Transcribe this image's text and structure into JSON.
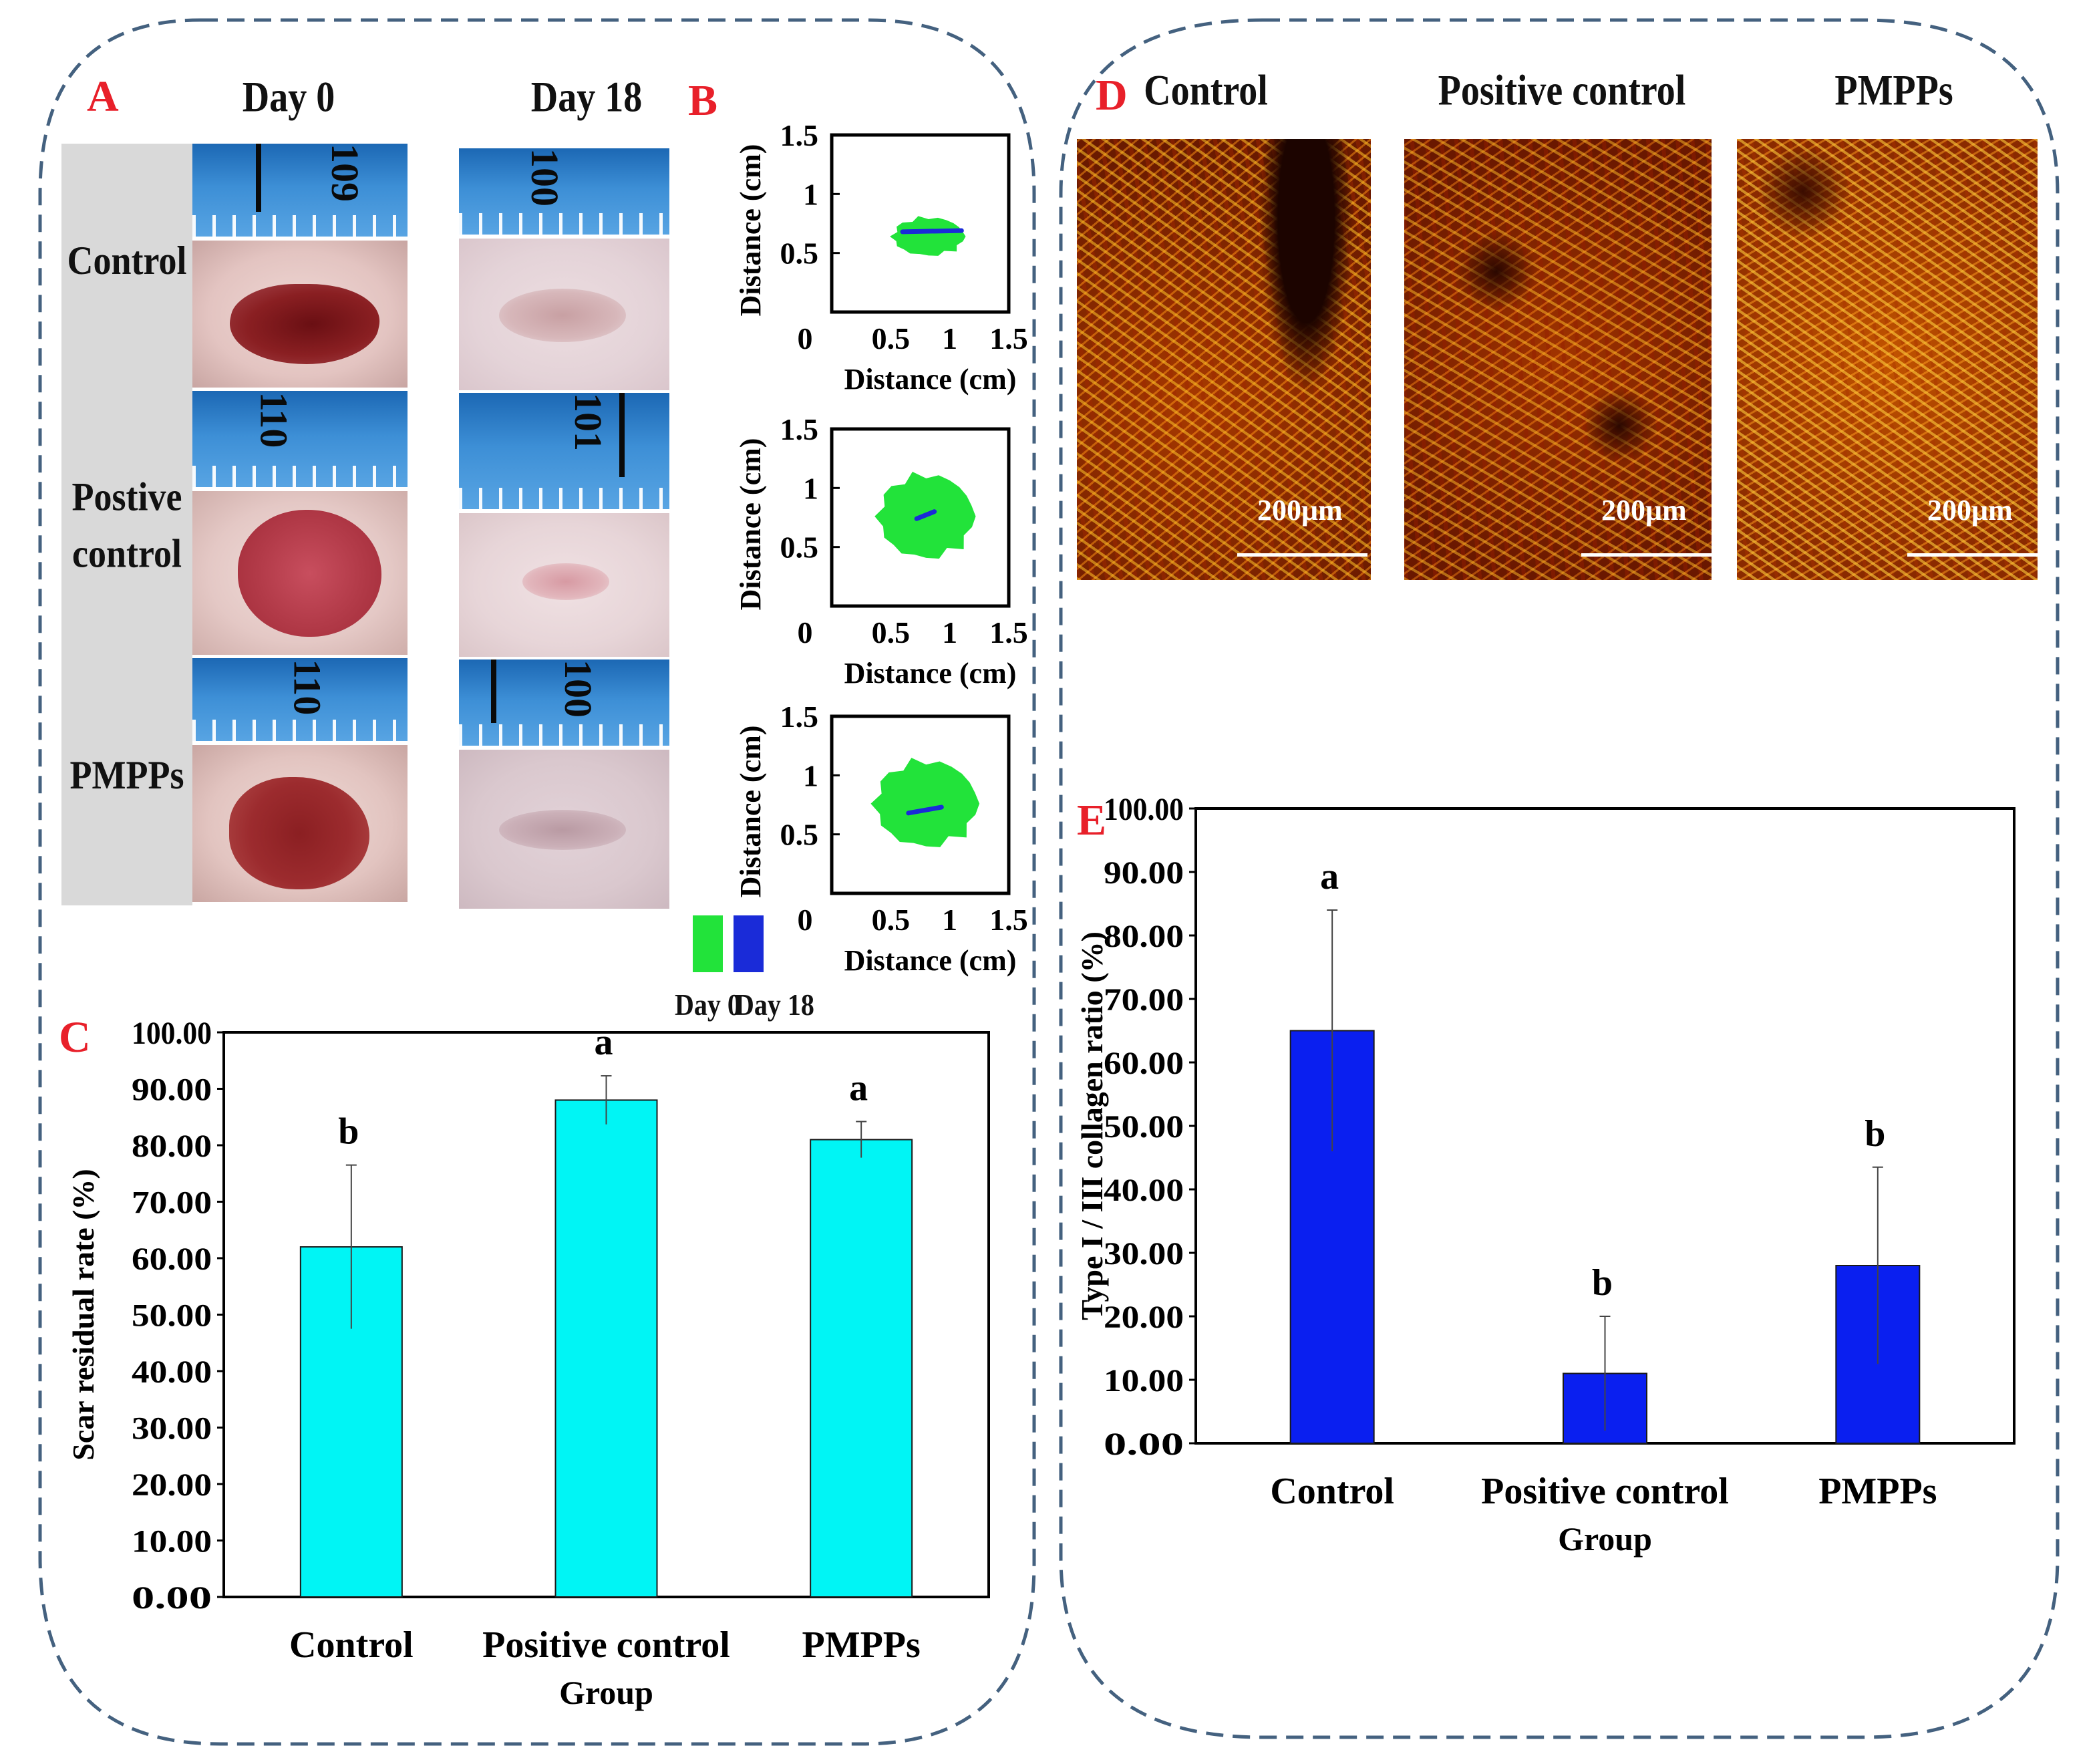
{
  "panels": {
    "a": {
      "letter": "A",
      "columns": [
        "Day 0",
        "Day 18"
      ],
      "rows": [
        "Control",
        "Postive control",
        "PMPPs"
      ],
      "ruler_numbers": {
        "day0": [
          "109",
          "110",
          "110"
        ],
        "day18": [
          "100",
          "101",
          "100"
        ]
      }
    },
    "b": {
      "letter": "B",
      "legend": [
        "Day 0",
        "Day 18"
      ],
      "legend_colors": [
        "#22e33a",
        "#1a2bd8"
      ]
    },
    "c": {
      "letter": "C"
    },
    "d": {
      "letter": "D",
      "columns": [
        "Control",
        "Positive control",
        "PMPPs"
      ],
      "scale_label": "200μm"
    },
    "e": {
      "letter": "E"
    }
  },
  "chart_data": [
    {
      "id": "B1",
      "type": "scatter",
      "title": "",
      "xlabel": "Distance (cm)",
      "ylabel": "Distance (cm)",
      "xlim": [
        0,
        1.5
      ],
      "ylim": [
        0,
        1.5
      ],
      "xticks": [
        "0",
        "0.5",
        "1",
        "1.5"
      ],
      "yticks": [
        "0.5",
        "1",
        "1.5"
      ],
      "series": [
        {
          "name": "Day 0",
          "color": "#22e33a",
          "shape": "wound area",
          "center": [
            0.82,
            0.64
          ],
          "extent": [
            0.6,
            0.32
          ]
        },
        {
          "name": "Day 18",
          "color": "#1a2bd8",
          "shape": "line",
          "points": [
            [
              0.6,
              0.68
            ],
            [
              1.1,
              0.69
            ]
          ]
        }
      ]
    },
    {
      "id": "B2",
      "type": "scatter",
      "title": "",
      "xlabel": "Distance (cm)",
      "ylabel": "Distance (cm)",
      "xlim": [
        0,
        1.5
      ],
      "ylim": [
        0,
        1.5
      ],
      "xticks": [
        "0",
        "0.5",
        "1",
        "1.5"
      ],
      "yticks": [
        "0.5",
        "1",
        "1.5"
      ],
      "series": [
        {
          "name": "Day 0",
          "color": "#22e33a",
          "shape": "wound area",
          "center": [
            0.8,
            0.76
          ],
          "extent": [
            0.8,
            0.7
          ]
        },
        {
          "name": "Day 18",
          "color": "#1a2bd8",
          "shape": "line",
          "points": [
            [
              0.72,
              0.74
            ],
            [
              0.87,
              0.8
            ]
          ]
        }
      ]
    },
    {
      "id": "B3",
      "type": "scatter",
      "title": "",
      "xlabel": "Distance (cm)",
      "ylabel": "Distance (cm)",
      "xlim": [
        0,
        1.5
      ],
      "ylim": [
        0,
        1.5
      ],
      "xticks": [
        "0",
        "0.5",
        "1",
        "1.5"
      ],
      "yticks": [
        "0.5",
        "1",
        "1.5"
      ],
      "series": [
        {
          "name": "Day 0",
          "color": "#22e33a",
          "shape": "wound area",
          "center": [
            0.8,
            0.76
          ],
          "extent": [
            0.86,
            0.72
          ]
        },
        {
          "name": "Day 18",
          "color": "#1a2bd8",
          "shape": "line",
          "points": [
            [
              0.65,
              0.68
            ],
            [
              0.93,
              0.73
            ]
          ]
        }
      ]
    },
    {
      "id": "C",
      "type": "bar",
      "title": "",
      "xlabel": "Group",
      "ylabel": "Scar residual rate (%)",
      "ylim": [
        0,
        100
      ],
      "yticks": [
        "0.00",
        "10.00",
        "20.00",
        "30.00",
        "40.00",
        "50.00",
        "60.00",
        "70.00",
        "80.00",
        "90.00",
        "100.00"
      ],
      "categories": [
        "Control",
        "Positive control",
        "PMPPs"
      ],
      "values": [
        62.0,
        88.0,
        81.0
      ],
      "errors": [
        14.5,
        4.3,
        3.2
      ],
      "significance": [
        "b",
        "a",
        "a"
      ],
      "color": "#00f5f5"
    },
    {
      "id": "E",
      "type": "bar",
      "title": "",
      "xlabel": "Group",
      "ylabel": "Type I / III collagen ratio (%)",
      "ylim": [
        0,
        100
      ],
      "yticks": [
        "0.00",
        "10.00",
        "20.00",
        "30.00",
        "40.00",
        "50.00",
        "60.00",
        "70.00",
        "80.00",
        "90.00",
        "100.00"
      ],
      "categories": [
        "Control",
        "Positive control",
        "PMPPs"
      ],
      "values": [
        65.0,
        11.0,
        28.0
      ],
      "errors": [
        19.0,
        9.0,
        15.5
      ],
      "significance": [
        "a",
        "b",
        "b"
      ],
      "color": "#0a1ff0"
    }
  ]
}
